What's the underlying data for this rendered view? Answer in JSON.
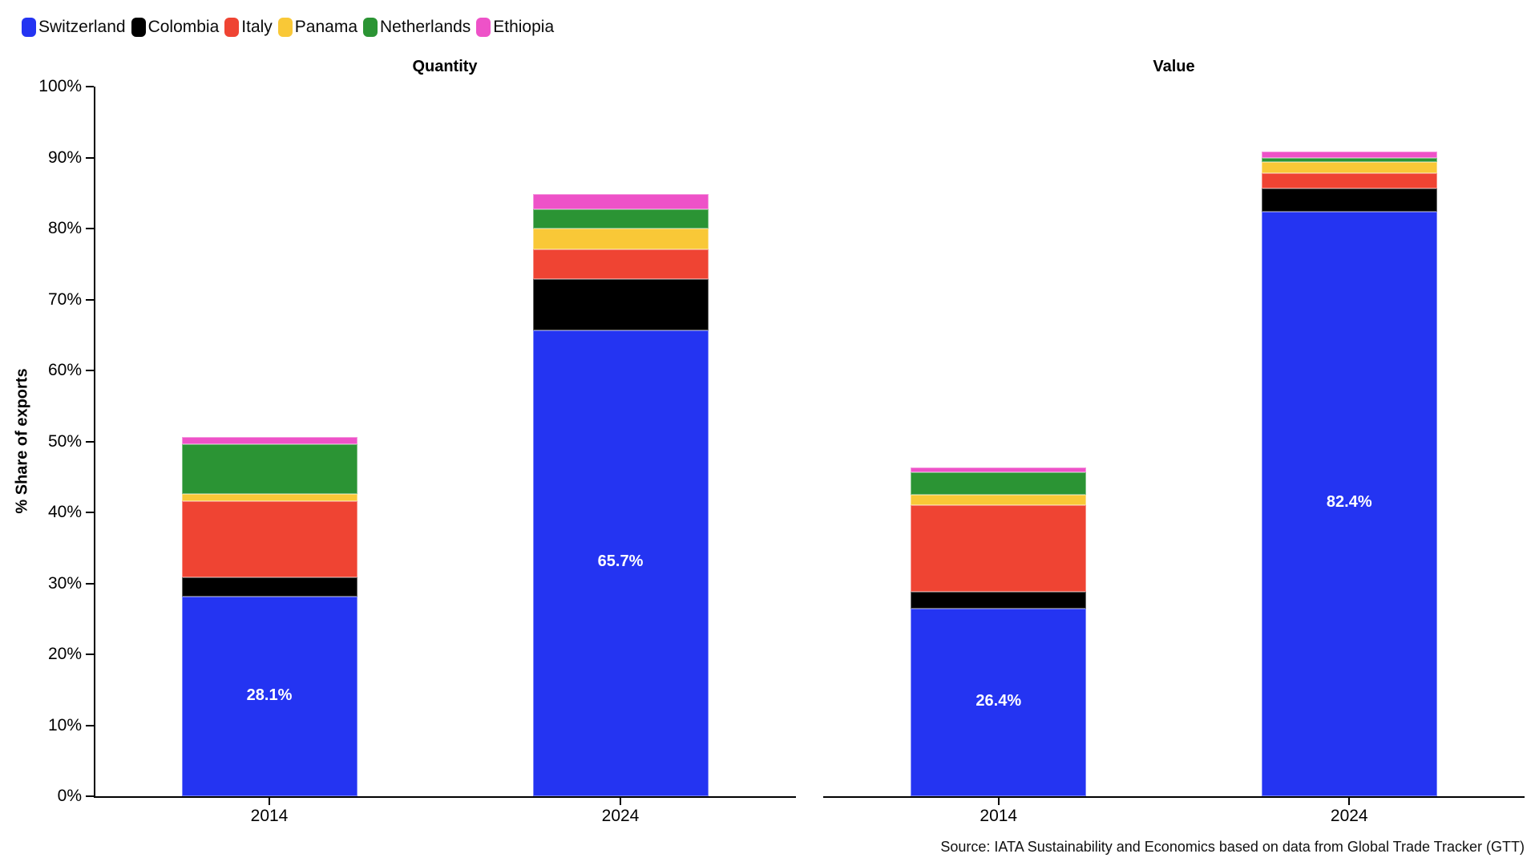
{
  "legend": {
    "items": [
      {
        "label": "Switzerland",
        "color": "#2434F2"
      },
      {
        "label": "Colombia",
        "color": "#000000"
      },
      {
        "label": "Italy",
        "color": "#EF4433"
      },
      {
        "label": "Panama",
        "color": "#F9C837"
      },
      {
        "label": "Netherlands",
        "color": "#2B9434"
      },
      {
        "label": "Ethiopia",
        "color": "#EE52C8"
      }
    ]
  },
  "y_axis": {
    "label": "% Share of exports",
    "ticks": [
      "0%",
      "10%",
      "20%",
      "30%",
      "40%",
      "50%",
      "60%",
      "70%",
      "80%",
      "90%",
      "100%"
    ]
  },
  "source": {
    "text": "Source: IATA Sustainability and Economics based on data from Global Trade Tracker (GTT)"
  },
  "chart_data": [
    {
      "type": "bar",
      "stacked": true,
      "title": "Quantity",
      "categories": [
        "2014",
        "2024"
      ],
      "ylabel": "% Share of exports",
      "ylim": [
        0,
        100
      ],
      "grid": false,
      "legend_position": "top-left",
      "show_y_ticks": true,
      "series": [
        {
          "name": "Switzerland",
          "color": "#2434F2",
          "values": [
            28.1,
            65.7
          ],
          "labels": [
            "28.1%",
            "65.7%"
          ]
        },
        {
          "name": "Colombia",
          "color": "#000000",
          "values": [
            2.8,
            7.2
          ]
        },
        {
          "name": "Italy",
          "color": "#EF4433",
          "values": [
            10.7,
            4.2
          ]
        },
        {
          "name": "Panama",
          "color": "#F9C837",
          "values": [
            1.0,
            2.9
          ]
        },
        {
          "name": "Netherlands",
          "color": "#2B9434",
          "values": [
            7.0,
            2.7
          ]
        },
        {
          "name": "Ethiopia",
          "color": "#EE52C8",
          "values": [
            1.0,
            2.2
          ]
        }
      ]
    },
    {
      "type": "bar",
      "stacked": true,
      "title": "Value",
      "categories": [
        "2014",
        "2024"
      ],
      "ylim": [
        0,
        100
      ],
      "grid": false,
      "show_y_ticks": false,
      "series": [
        {
          "name": "Switzerland",
          "color": "#2434F2",
          "values": [
            26.4,
            82.4
          ],
          "labels": [
            "26.4%",
            "82.4%"
          ]
        },
        {
          "name": "Colombia",
          "color": "#000000",
          "values": [
            2.4,
            3.2
          ]
        },
        {
          "name": "Italy",
          "color": "#EF4433",
          "values": [
            12.2,
            2.2
          ]
        },
        {
          "name": "Panama",
          "color": "#F9C837",
          "values": [
            1.5,
            1.6
          ]
        },
        {
          "name": "Netherlands",
          "color": "#2B9434",
          "values": [
            3.1,
            0.5
          ]
        },
        {
          "name": "Ethiopia",
          "color": "#EE52C8",
          "values": [
            0.7,
            0.9
          ]
        }
      ]
    }
  ]
}
